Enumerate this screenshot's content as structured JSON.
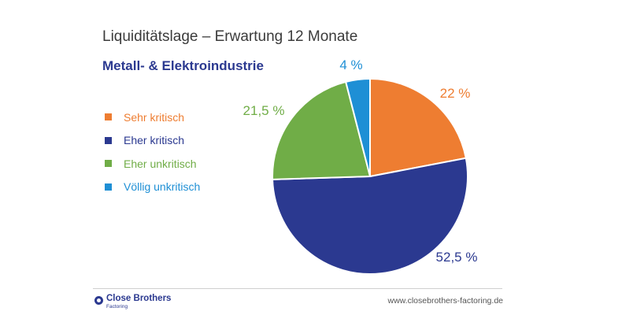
{
  "header": {
    "title": "Liquiditätslage – Erwartung 12 Monate",
    "subtitle": "Metall- & Elektroindustrie"
  },
  "chart_data": {
    "type": "pie",
    "categories": [
      "Sehr kritisch",
      "Eher kritisch",
      "Eher unkritisch",
      "Völlig unkritisch"
    ],
    "values": [
      22,
      52.5,
      21.5,
      4
    ],
    "value_labels": [
      "22 %",
      "52,5 %",
      "21,5 %",
      "4 %"
    ],
    "colors": [
      "#ee7d31",
      "#2b3990",
      "#70ad47",
      "#1e8fd5"
    ],
    "legend_position": "left",
    "start_angle": "12 o'clock",
    "direction": "clockwise"
  },
  "legend": {
    "items": [
      {
        "label": "Sehr kritisch",
        "color": "#ee7d31"
      },
      {
        "label": "Eher kritisch",
        "color": "#2b3990"
      },
      {
        "label": "Eher unkritisch",
        "color": "#70ad47"
      },
      {
        "label": "Völlig unkritisch",
        "color": "#1e8fd5"
      }
    ]
  },
  "footer": {
    "logo_name": "Close Brothers",
    "logo_sub": "Factoring",
    "url": "www.closebrothers-factoring.de"
  }
}
